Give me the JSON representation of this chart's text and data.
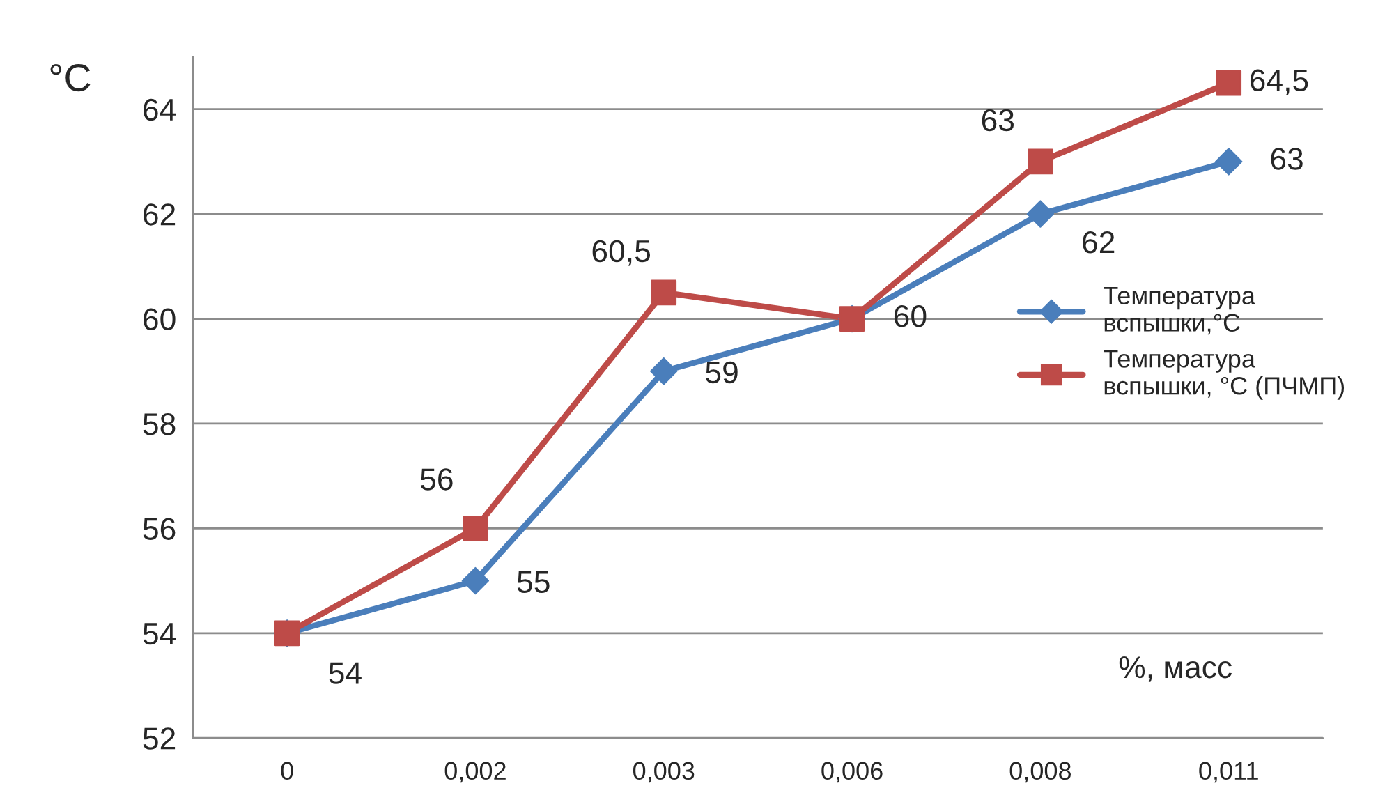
{
  "chart_data": {
    "type": "line",
    "xlabel": "%, масс",
    "ylabel": "°C",
    "categories": [
      "0",
      "0,002",
      "0,003",
      "0,006",
      "0,008",
      "0,011"
    ],
    "series": [
      {
        "name": "Температура\nвспышки,°С",
        "color": "#4a7ebb",
        "marker": "diamond",
        "values": [
          54,
          55,
          59,
          60,
          62,
          63
        ],
        "value_labels": [
          "54",
          "55",
          "59",
          "60",
          "62",
          "63"
        ]
      },
      {
        "name": "Температура\nвспышки, °С (ПЧМП)",
        "color": "#be4b48",
        "marker": "square",
        "values": [
          54,
          56,
          60.5,
          60,
          63,
          64.5
        ],
        "value_labels": [
          null,
          "56",
          "60,5",
          null,
          "63",
          "64,5"
        ]
      }
    ],
    "ylim": [
      52,
      65
    ],
    "yticks": [
      52,
      54,
      56,
      58,
      60,
      62,
      64
    ],
    "grid": "y",
    "legend": "right",
    "line_style": "solid"
  }
}
